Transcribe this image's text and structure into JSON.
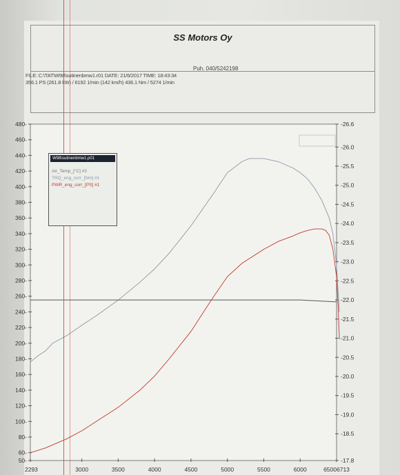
{
  "header": {
    "company": "SS Motors Oy",
    "phone": "Puh. 040/5242198",
    "file_line": "FILE: C:\\TAT\\W98\\sutinenbmw1.r01  DATE: 21/6/2017  TIME: 18:43:34",
    "result_line": "356.1 PS  (261.8 kW) / 6192 1/min (142 km/h)   436.1 Nm / 5274 1/min"
  },
  "legend": {
    "title": "W98\\sutinenbmw1.p01",
    "items": [
      {
        "label": "Air_Temp_[°C] #2",
        "color": "#777777"
      },
      {
        "label": "TRQ_eng_corr_[Nm] #1",
        "color": "#8a97a8"
      },
      {
        "label": "PWR_eng_corr_[PS] #1",
        "color": "#c0392b"
      }
    ]
  },
  "chart_data": {
    "type": "line",
    "xlim": [
      2293,
      6500
    ],
    "ylim": [
      50,
      480
    ],
    "y2lim": [
      -17.8,
      -26.6
    ],
    "x_ticks": [
      "2293",
      "3000",
      "3500",
      "4000",
      "4500",
      "5000",
      "5500",
      "6000",
      "65006713"
    ],
    "x_tick_values": [
      2293,
      3000,
      3500,
      4000,
      4500,
      5000,
      5500,
      6000,
      6500
    ],
    "y_ticks": [
      50,
      60,
      80,
      100,
      120,
      140,
      160,
      180,
      200,
      220,
      240,
      260,
      280,
      300,
      320,
      340,
      360,
      380,
      400,
      420,
      440,
      460,
      480
    ],
    "y2_ticks": [
      "-17.8",
      "-18.5",
      "-19.0",
      "-19.5",
      "-20.0",
      "-20.5",
      "-21.0",
      "-21.5",
      "-22.0",
      "-22.5",
      "-23.0",
      "-23.5",
      "-24.0",
      "-24.5",
      "-25.0",
      "-25.5",
      "-26.0",
      "-26.6"
    ],
    "y2_tick_values": [
      -17.8,
      -18.5,
      -19.0,
      -19.5,
      -20.0,
      -20.5,
      -21.0,
      -21.5,
      -22.0,
      -22.5,
      -23.0,
      -23.5,
      -24.0,
      -24.5,
      -25.0,
      -25.5,
      -26.0,
      -26.6
    ],
    "series": [
      {
        "name": "TRQ_eng_corr_[Nm] #1",
        "color": "#8a97a8",
        "x": [
          2293,
          2400,
          2500,
          2600,
          2800,
          3000,
          3200,
          3500,
          3800,
          4000,
          4200,
          4500,
          4800,
          5000,
          5200,
          5300,
          5500,
          5700,
          5900,
          6000,
          6100,
          6200,
          6300,
          6400,
          6450,
          6500,
          6520,
          6540
        ],
        "y": [
          176,
          184,
          190,
          200,
          210,
          223,
          235,
          255,
          278,
          295,
          315,
          350,
          390,
          418,
          432,
          436,
          436,
          432,
          424,
          418,
          410,
          398,
          382,
          360,
          340,
          300,
          268,
          240
        ]
      },
      {
        "name": "PWR_eng_corr_[PS] #1",
        "color": "#c0392b",
        "x": [
          2293,
          2400,
          2500,
          2600,
          2800,
          3000,
          3200,
          3500,
          3800,
          4000,
          4200,
          4500,
          4800,
          5000,
          5200,
          5500,
          5700,
          5900,
          6000,
          6100,
          6200,
          6300,
          6350,
          6400,
          6450,
          6500,
          6520,
          6540
        ],
        "y": [
          60,
          63,
          66,
          70,
          78,
          88,
          100,
          118,
          140,
          158,
          180,
          215,
          258,
          285,
          302,
          320,
          330,
          337,
          341,
          344,
          346,
          346,
          344,
          338,
          320,
          285,
          250,
          205
        ]
      },
      {
        "name": "Air_Temp_[°C] #2",
        "color": "#555555",
        "axis": "right",
        "x": [
          2293,
          3000,
          4000,
          5000,
          6000,
          6500
        ],
        "y": [
          -22.0,
          -22.0,
          -22.0,
          -22.0,
          -22.0,
          -21.95
        ]
      }
    ]
  }
}
